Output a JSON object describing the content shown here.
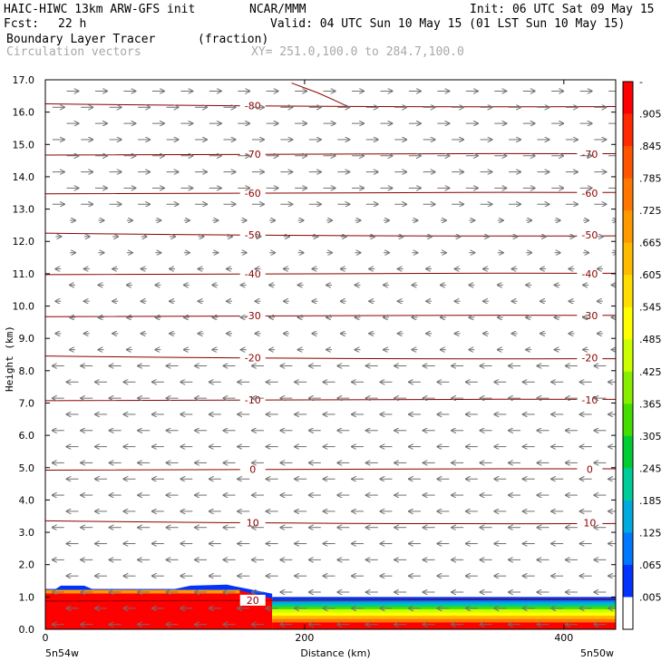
{
  "header": {
    "model": "HAIC-HIWC 13km ARW-GFS init",
    "org": "NCAR/MMM",
    "init": "Init: 06 UTC Sat 09 May 15",
    "fcst_label": "Fcst:",
    "fcst_value": "22 h",
    "valid": "Valid: 04 UTC Sun 10 May 15 (01 LST Sun 10 May 15)",
    "field_name": "Boundary Layer Tracer",
    "field_units": "(fraction)",
    "vector_label": "Circulation vectors",
    "xy_label": "XY= 251.0,100.0 to 284.7,100.0"
  },
  "chart_data": {
    "type": "heatmap",
    "xlabel": "Distance (km)",
    "ylabel": "Height (km)",
    "xlim": [
      0,
      440
    ],
    "ylim": [
      0,
      17
    ],
    "x_ticks": [
      0,
      200,
      400
    ],
    "y_ticks": [
      "0.0",
      "1.0",
      "2.0",
      "3.0",
      "4.0",
      "5.0",
      "6.0",
      "7.0",
      "8.0",
      "9.0",
      "10.0",
      "11.0",
      "12.0",
      "13.0",
      "14.0",
      "15.0",
      "16.0",
      "17.0"
    ],
    "x_end_labels": [
      "5n54w",
      "5n50w"
    ],
    "colorbar": {
      "labels": [
        "-",
        ".905",
        ".845",
        ".785",
        ".725",
        ".665",
        ".605",
        ".545",
        ".485",
        ".425",
        ".365",
        ".305",
        ".245",
        ".185",
        ".125",
        ".065",
        ".005"
      ],
      "colors": [
        "#ff0000",
        "#ff2a00",
        "#ff5500",
        "#ff7700",
        "#ff9900",
        "#ffbb00",
        "#ffdd00",
        "#ffff00",
        "#ccff00",
        "#88ee00",
        "#44dd00",
        "#00cc33",
        "#00cc99",
        "#00aadd",
        "#0077ff",
        "#0033ff",
        "#ffffff"
      ]
    },
    "contours": {
      "color": "#8b0000",
      "levels": [
        {
          "label": "-80",
          "height_km": 16.2
        },
        {
          "label": "-70",
          "height_km": 14.7
        },
        {
          "label": "-60",
          "height_km": 13.5
        },
        {
          "label": "-50",
          "height_km": 12.2
        },
        {
          "label": "-40",
          "height_km": 11.0
        },
        {
          "label": "-30",
          "height_km": 9.7
        },
        {
          "label": "-20",
          "height_km": 8.4
        },
        {
          "label": "-10",
          "height_km": 7.1
        },
        {
          "label": "0",
          "height_km": 4.95
        },
        {
          "label": "10",
          "height_km": 3.3
        },
        {
          "label": "20",
          "height_km": 0.9
        }
      ]
    },
    "vectors": {
      "color": "#707070",
      "flow_by_height": [
        {
          "from_km": 13.0,
          "direction": "east",
          "strength": "strong"
        },
        {
          "from_km": 11.5,
          "direction": "east",
          "strength": "weak"
        },
        {
          "from_km": 8.5,
          "direction": "west",
          "strength": "weak"
        },
        {
          "from_km": 0.0,
          "direction": "west",
          "strength": "strong"
        }
      ]
    },
    "tracer_layer": {
      "top_km_west": 1.2,
      "top_km_east": 1.0,
      "transition_km": 175
    }
  }
}
